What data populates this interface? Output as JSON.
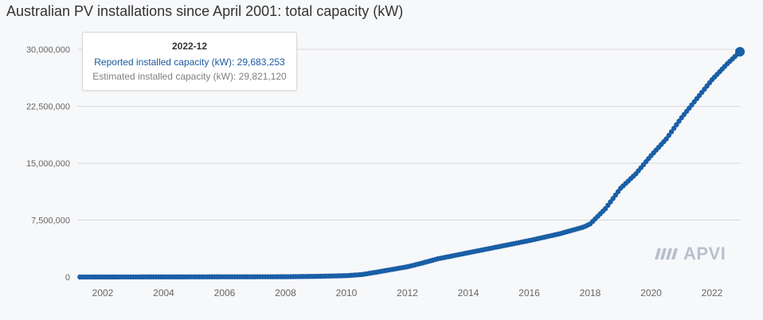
{
  "title": "Australian PV installations since April 2001: total capacity (kW)",
  "tooltip": {
    "period": "2022-12",
    "reported_label": "Reported installed capacity (kW):",
    "reported_value": "29,683,253",
    "estimated_label": "Estimated installed capacity (kW):",
    "estimated_value": "29,821,120"
  },
  "logo": {
    "text": "APVI",
    "icon": "apvi-stripes-icon"
  },
  "colors": {
    "series": "#1a5fa6",
    "grid": "#d8d8d8",
    "background": "#f7f8fa"
  },
  "chart_data": {
    "type": "scatter",
    "title": "Australian PV installations since April 2001: total capacity (kW)",
    "series_name": "Reported installed capacity (kW)",
    "x_range": [
      2001.25,
      2022.917
    ],
    "ylim": [
      0,
      30000000
    ],
    "yticks": [
      0,
      7500000,
      15000000,
      22500000,
      30000000
    ],
    "ytick_labels": [
      "0",
      "7,500,000",
      "15,000,000",
      "22,500,000",
      "30,000,000"
    ],
    "xticks": [
      2002,
      2004,
      2006,
      2008,
      2010,
      2012,
      2014,
      2016,
      2018,
      2020,
      2022
    ],
    "xtick_labels": [
      "2002",
      "2004",
      "2006",
      "2008",
      "2010",
      "2012",
      "2014",
      "2016",
      "2018",
      "2020",
      "2022"
    ],
    "grid": true,
    "frequency": "monthly",
    "anchor_points": [
      [
        2001.25,
        0
      ],
      [
        2008.0,
        40000
      ],
      [
        2009.0,
        90000
      ],
      [
        2010.0,
        180000
      ],
      [
        2010.5,
        320000
      ],
      [
        2011.0,
        650000
      ],
      [
        2011.5,
        1000000
      ],
      [
        2012.0,
        1350000
      ],
      [
        2012.5,
        1850000
      ],
      [
        2013.0,
        2400000
      ],
      [
        2014.0,
        3200000
      ],
      [
        2015.0,
        4000000
      ],
      [
        2016.0,
        4800000
      ],
      [
        2017.0,
        5700000
      ],
      [
        2017.8,
        6600000
      ],
      [
        2018.0,
        7000000
      ],
      [
        2018.5,
        9000000
      ],
      [
        2019.0,
        11700000
      ],
      [
        2019.5,
        13600000
      ],
      [
        2020.0,
        16000000
      ],
      [
        2020.5,
        18200000
      ],
      [
        2021.0,
        21000000
      ],
      [
        2021.5,
        23500000
      ],
      [
        2022.0,
        26000000
      ],
      [
        2022.5,
        28100000
      ],
      [
        2022.917,
        29683253
      ]
    ],
    "highlighted_point": {
      "x": "2022-12",
      "value": 29683253
    }
  }
}
